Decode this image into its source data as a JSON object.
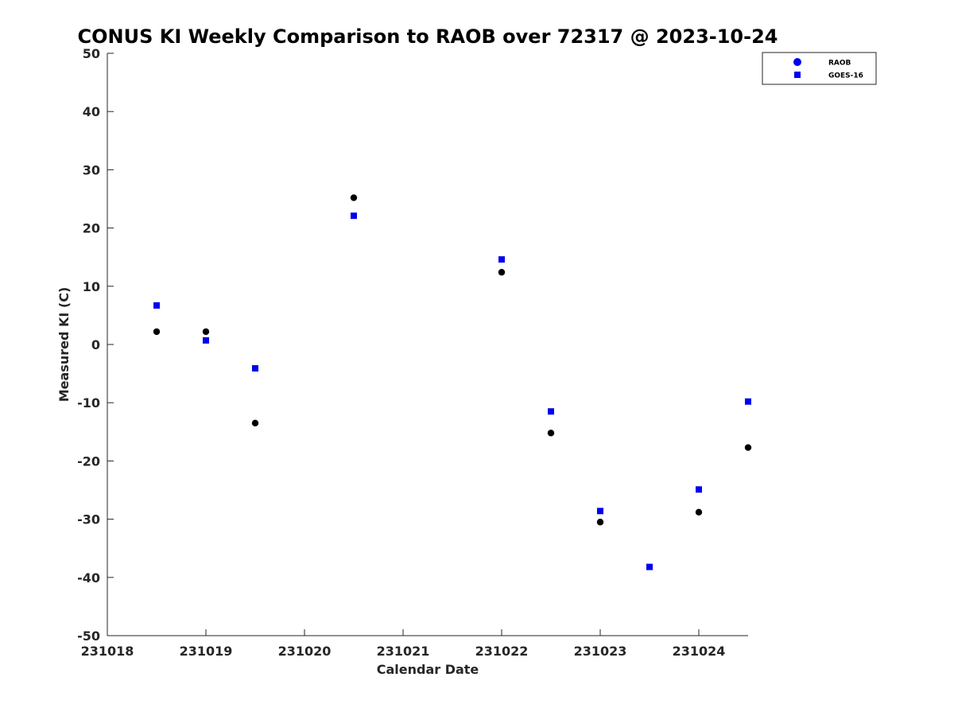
{
  "chart_data": {
    "type": "scatter",
    "title": "CONUS KI Weekly Comparison to RAOB over 72317 @ 2023-10-24",
    "xlabel": "Calendar Date",
    "ylabel": "Measured KI (C)",
    "xlim": [
      0,
      6.5
    ],
    "ylim": [
      -50,
      50
    ],
    "x_ticks": [
      0,
      1,
      2,
      3,
      4,
      5,
      6
    ],
    "x_tick_labels": [
      "231018",
      "231019",
      "231020",
      "231021",
      "231022",
      "231023",
      "231024"
    ],
    "y_ticks": [
      -50,
      -40,
      -30,
      -20,
      -10,
      0,
      10,
      20,
      30,
      40,
      50
    ],
    "y_tick_labels": [
      "-50",
      "-40",
      "-30",
      "-20",
      "-10",
      "0",
      "10",
      "20",
      "30",
      "40",
      "50"
    ],
    "grid": false,
    "legend_position": "top-right",
    "series": [
      {
        "name": "RAOB",
        "marker": "circle",
        "color": "#000000",
        "legend_color": "#0000ee",
        "points": [
          [
            0.5,
            2.2
          ],
          [
            1.0,
            2.2
          ],
          [
            1.5,
            -13.5
          ],
          [
            2.5,
            25.2
          ],
          [
            4.0,
            12.4
          ],
          [
            4.5,
            -15.2
          ],
          [
            5.0,
            -30.5
          ],
          [
            6.0,
            -28.8
          ],
          [
            6.5,
            -17.7
          ]
        ]
      },
      {
        "name": "GOES-16",
        "marker": "square",
        "color": "#0000ee",
        "legend_color": "#0000ee",
        "points": [
          [
            0.5,
            6.7
          ],
          [
            1.0,
            0.7
          ],
          [
            1.5,
            -4.1
          ],
          [
            2.5,
            22.1
          ],
          [
            4.0,
            14.6
          ],
          [
            4.5,
            -11.5
          ],
          [
            5.0,
            -28.6
          ],
          [
            5.5,
            -38.2
          ],
          [
            6.0,
            -24.9
          ],
          [
            6.5,
            -9.8
          ]
        ]
      }
    ]
  }
}
